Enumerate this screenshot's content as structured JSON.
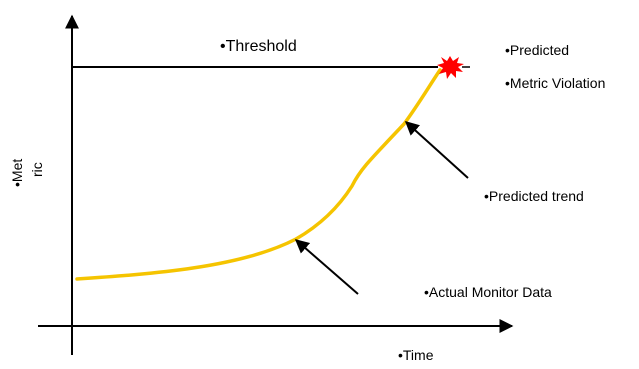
{
  "labels": {
    "threshold": "•Threshold",
    "predicted": "•Predicted",
    "metric_violation": "•Metric Violation",
    "predicted_trend": "•Predicted trend",
    "actual_monitor_data": "•Actual Monitor Data",
    "time": "•Time",
    "metric_line1": "•Met",
    "metric_line2": "ric"
  },
  "colors": {
    "axis": "#000000",
    "threshold_line": "#000000",
    "trend_curve": "#f5c400",
    "violation_burst": "#ff0000",
    "arrows": "#000000"
  },
  "icons": {
    "violation": "starburst-icon"
  }
}
